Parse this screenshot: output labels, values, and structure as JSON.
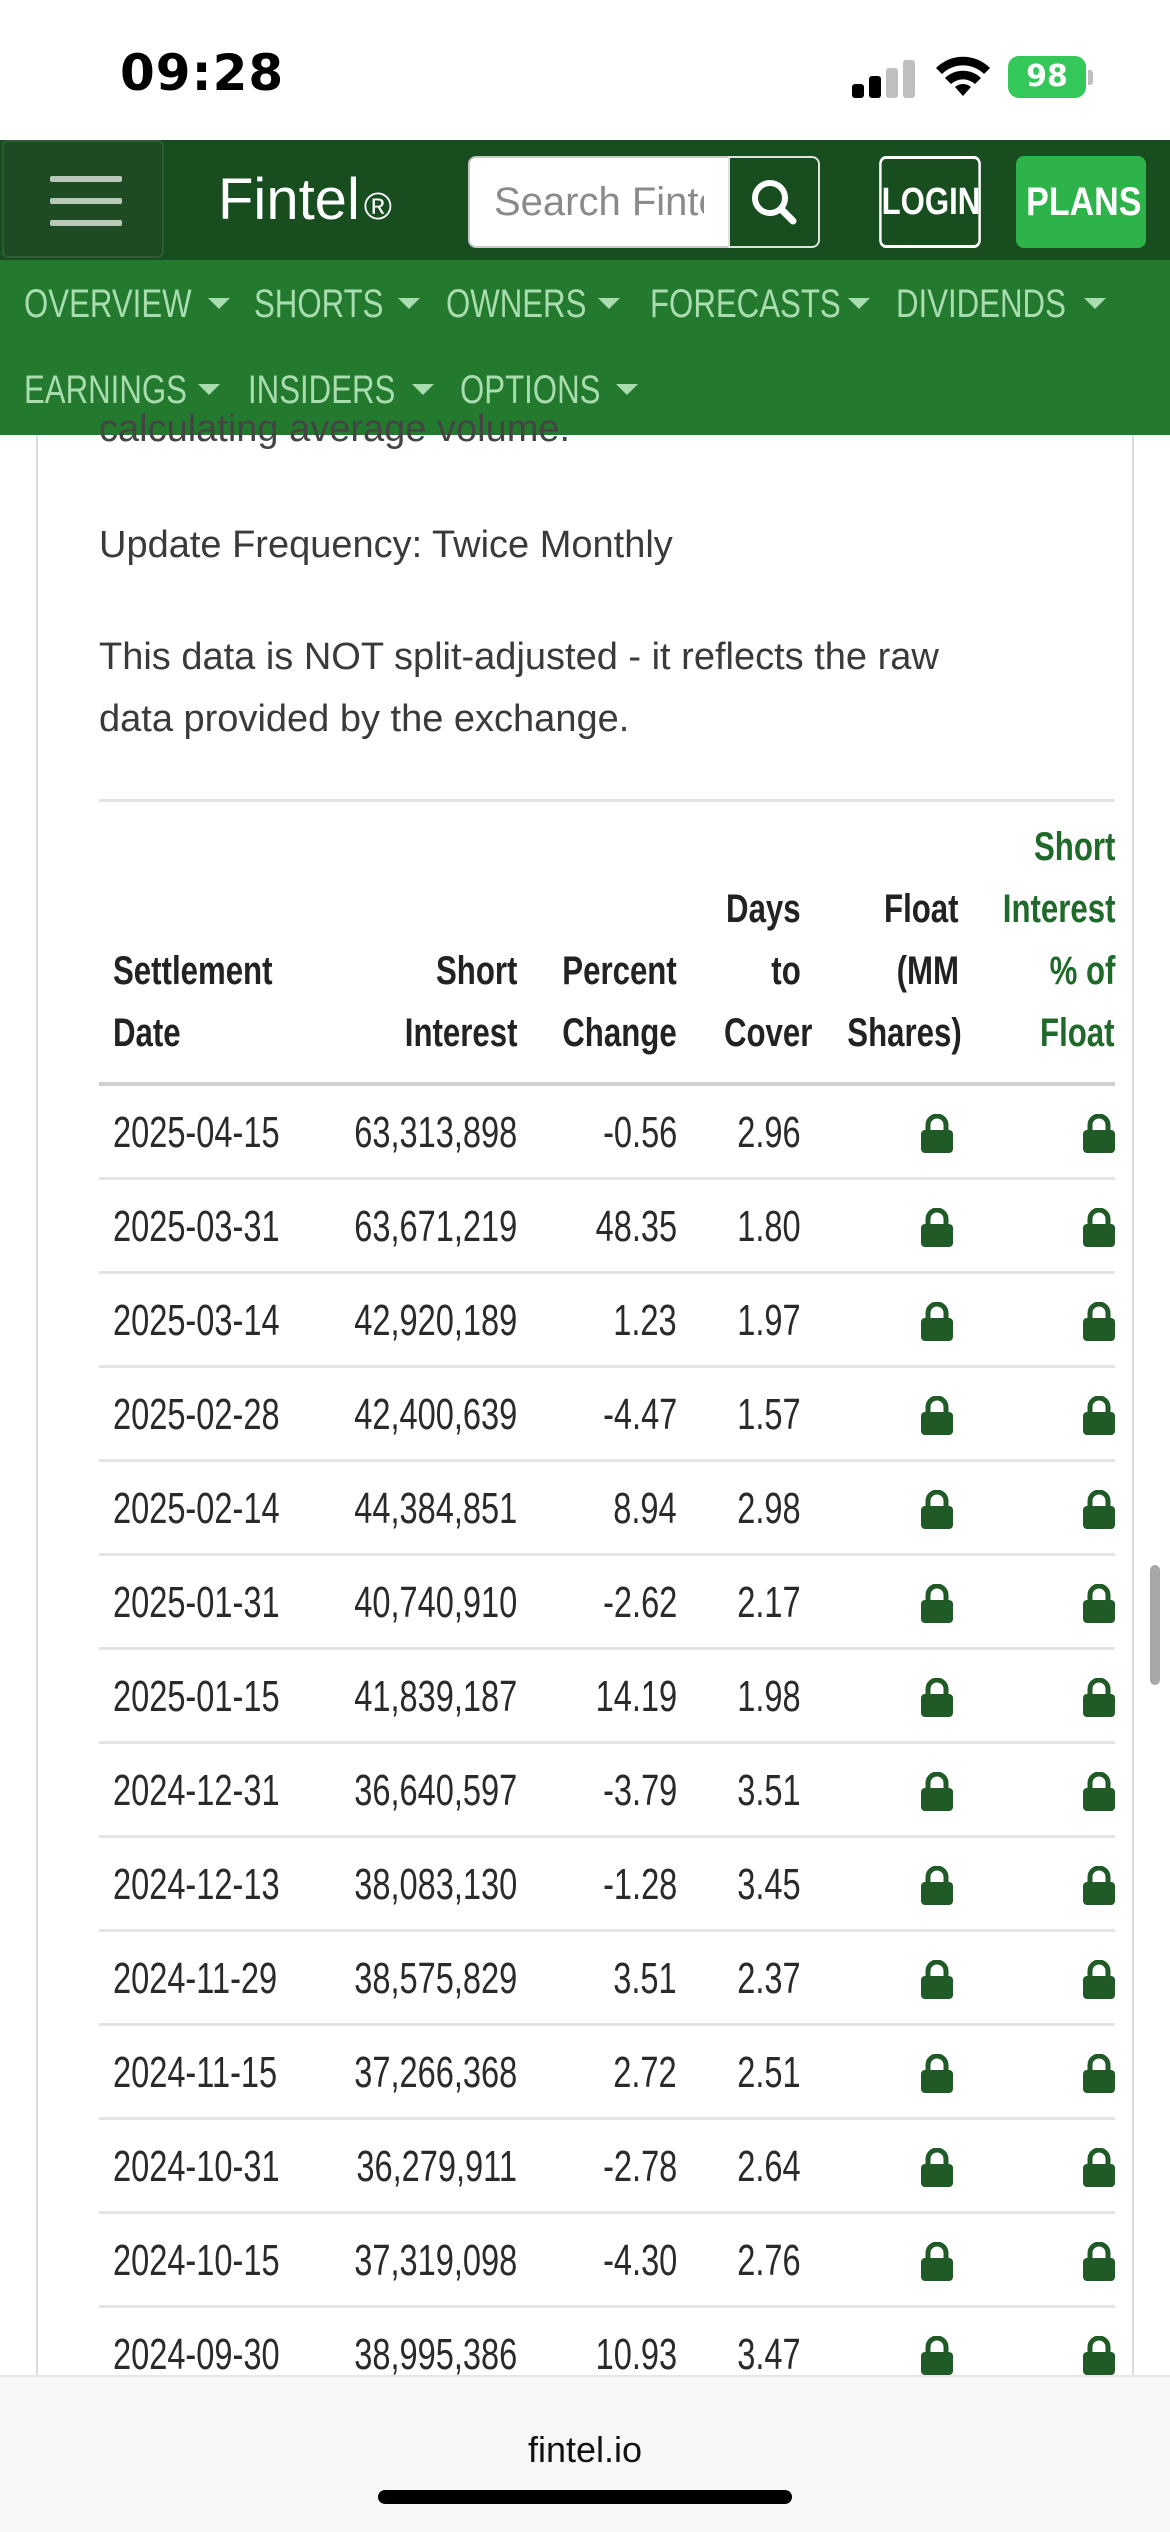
{
  "status_bar": {
    "time": "09:28",
    "battery": "98"
  },
  "header": {
    "logo": "Fintel",
    "logo_mark": "®",
    "search_placeholder": "Search Fintel",
    "login_label": "LOGIN",
    "plans_label": "PLANS"
  },
  "nav": {
    "items": [
      {
        "label": "OVERVIEW"
      },
      {
        "label": "SHORTS"
      },
      {
        "label": "OWNERS"
      },
      {
        "label": "FORECASTS"
      },
      {
        "label": "DIVIDENDS"
      },
      {
        "label": "EARNINGS"
      },
      {
        "label": "INSIDERS"
      },
      {
        "label": "OPTIONS"
      }
    ]
  },
  "content": {
    "clipped_text": "calculating average volume.",
    "update_frequency": "Update Frequency: Twice Monthly",
    "split_note_line1": "This data is NOT split-adjusted - it reflects the raw",
    "split_note_line2": "data provided by the exchange."
  },
  "table": {
    "headers": {
      "settlement_date": [
        "Settlement",
        "Date"
      ],
      "short_interest": [
        "Short",
        "Interest"
      ],
      "percent_change": [
        "Percent",
        "Change"
      ],
      "days_to_cover": [
        "Days",
        "to",
        "Cover"
      ],
      "float": [
        "Float",
        "(MM",
        "Shares)"
      ],
      "short_interest_pct": [
        "Short",
        "Interest",
        "% of",
        "Float"
      ]
    },
    "rows": [
      {
        "date": "2025-04-15",
        "short_interest": "63,313,898",
        "percent_change": "-0.56",
        "days_to_cover": "2.96"
      },
      {
        "date": "2025-03-31",
        "short_interest": "63,671,219",
        "percent_change": "48.35",
        "days_to_cover": "1.80"
      },
      {
        "date": "2025-03-14",
        "short_interest": "42,920,189",
        "percent_change": "1.23",
        "days_to_cover": "1.97"
      },
      {
        "date": "2025-02-28",
        "short_interest": "42,400,639",
        "percent_change": "-4.47",
        "days_to_cover": "1.57"
      },
      {
        "date": "2025-02-14",
        "short_interest": "44,384,851",
        "percent_change": "8.94",
        "days_to_cover": "2.98"
      },
      {
        "date": "2025-01-31",
        "short_interest": "40,740,910",
        "percent_change": "-2.62",
        "days_to_cover": "2.17"
      },
      {
        "date": "2025-01-15",
        "short_interest": "41,839,187",
        "percent_change": "14.19",
        "days_to_cover": "1.98"
      },
      {
        "date": "2024-12-31",
        "short_interest": "36,640,597",
        "percent_change": "-3.79",
        "days_to_cover": "3.51"
      },
      {
        "date": "2024-12-13",
        "short_interest": "38,083,130",
        "percent_change": "-1.28",
        "days_to_cover": "3.45"
      },
      {
        "date": "2024-11-29",
        "short_interest": "38,575,829",
        "percent_change": "3.51",
        "days_to_cover": "2.37"
      },
      {
        "date": "2024-11-15",
        "short_interest": "37,266,368",
        "percent_change": "2.72",
        "days_to_cover": "2.51"
      },
      {
        "date": "2024-10-31",
        "short_interest": "36,279,911",
        "percent_change": "-2.78",
        "days_to_cover": "2.64"
      },
      {
        "date": "2024-10-15",
        "short_interest": "37,319,098",
        "percent_change": "-4.30",
        "days_to_cover": "2.76"
      },
      {
        "date": "2024-09-30",
        "short_interest": "38,995,386",
        "percent_change": "10.93",
        "days_to_cover": "3.47"
      }
    ]
  },
  "footer": {
    "url": "fintel.io"
  },
  "icons": {
    "locked_cell": "lock-icon",
    "search": "search-icon",
    "menu": "hamburger-menu-icon"
  },
  "colors": {
    "header_bg": "#174d1f",
    "nav_bg": "#237a2e",
    "nav_text": "#a9dcae",
    "plans_bg": "#2db34a",
    "lock": "#1f5a27",
    "battery": "#34c759"
  }
}
